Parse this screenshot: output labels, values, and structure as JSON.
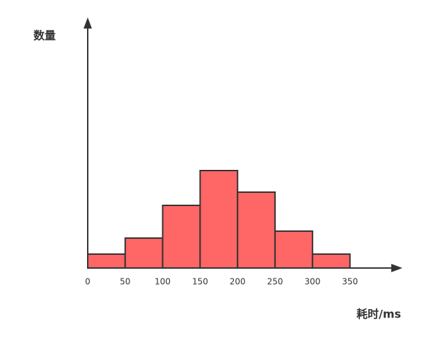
{
  "chart_data": {
    "type": "histogram",
    "x_label": "耗时/ms",
    "y_label": "数量",
    "bins": [
      0,
      50,
      100,
      150,
      200,
      250,
      300,
      350
    ],
    "values": [
      20,
      43,
      90,
      140,
      109,
      53,
      20
    ],
    "color": "#ff6666",
    "edge_color": "#333333",
    "xlim": [
      0,
      420
    ],
    "ylim": [
      0,
      360
    ],
    "xticks": [
      0,
      50,
      100,
      150,
      200,
      250,
      300,
      350
    ]
  }
}
